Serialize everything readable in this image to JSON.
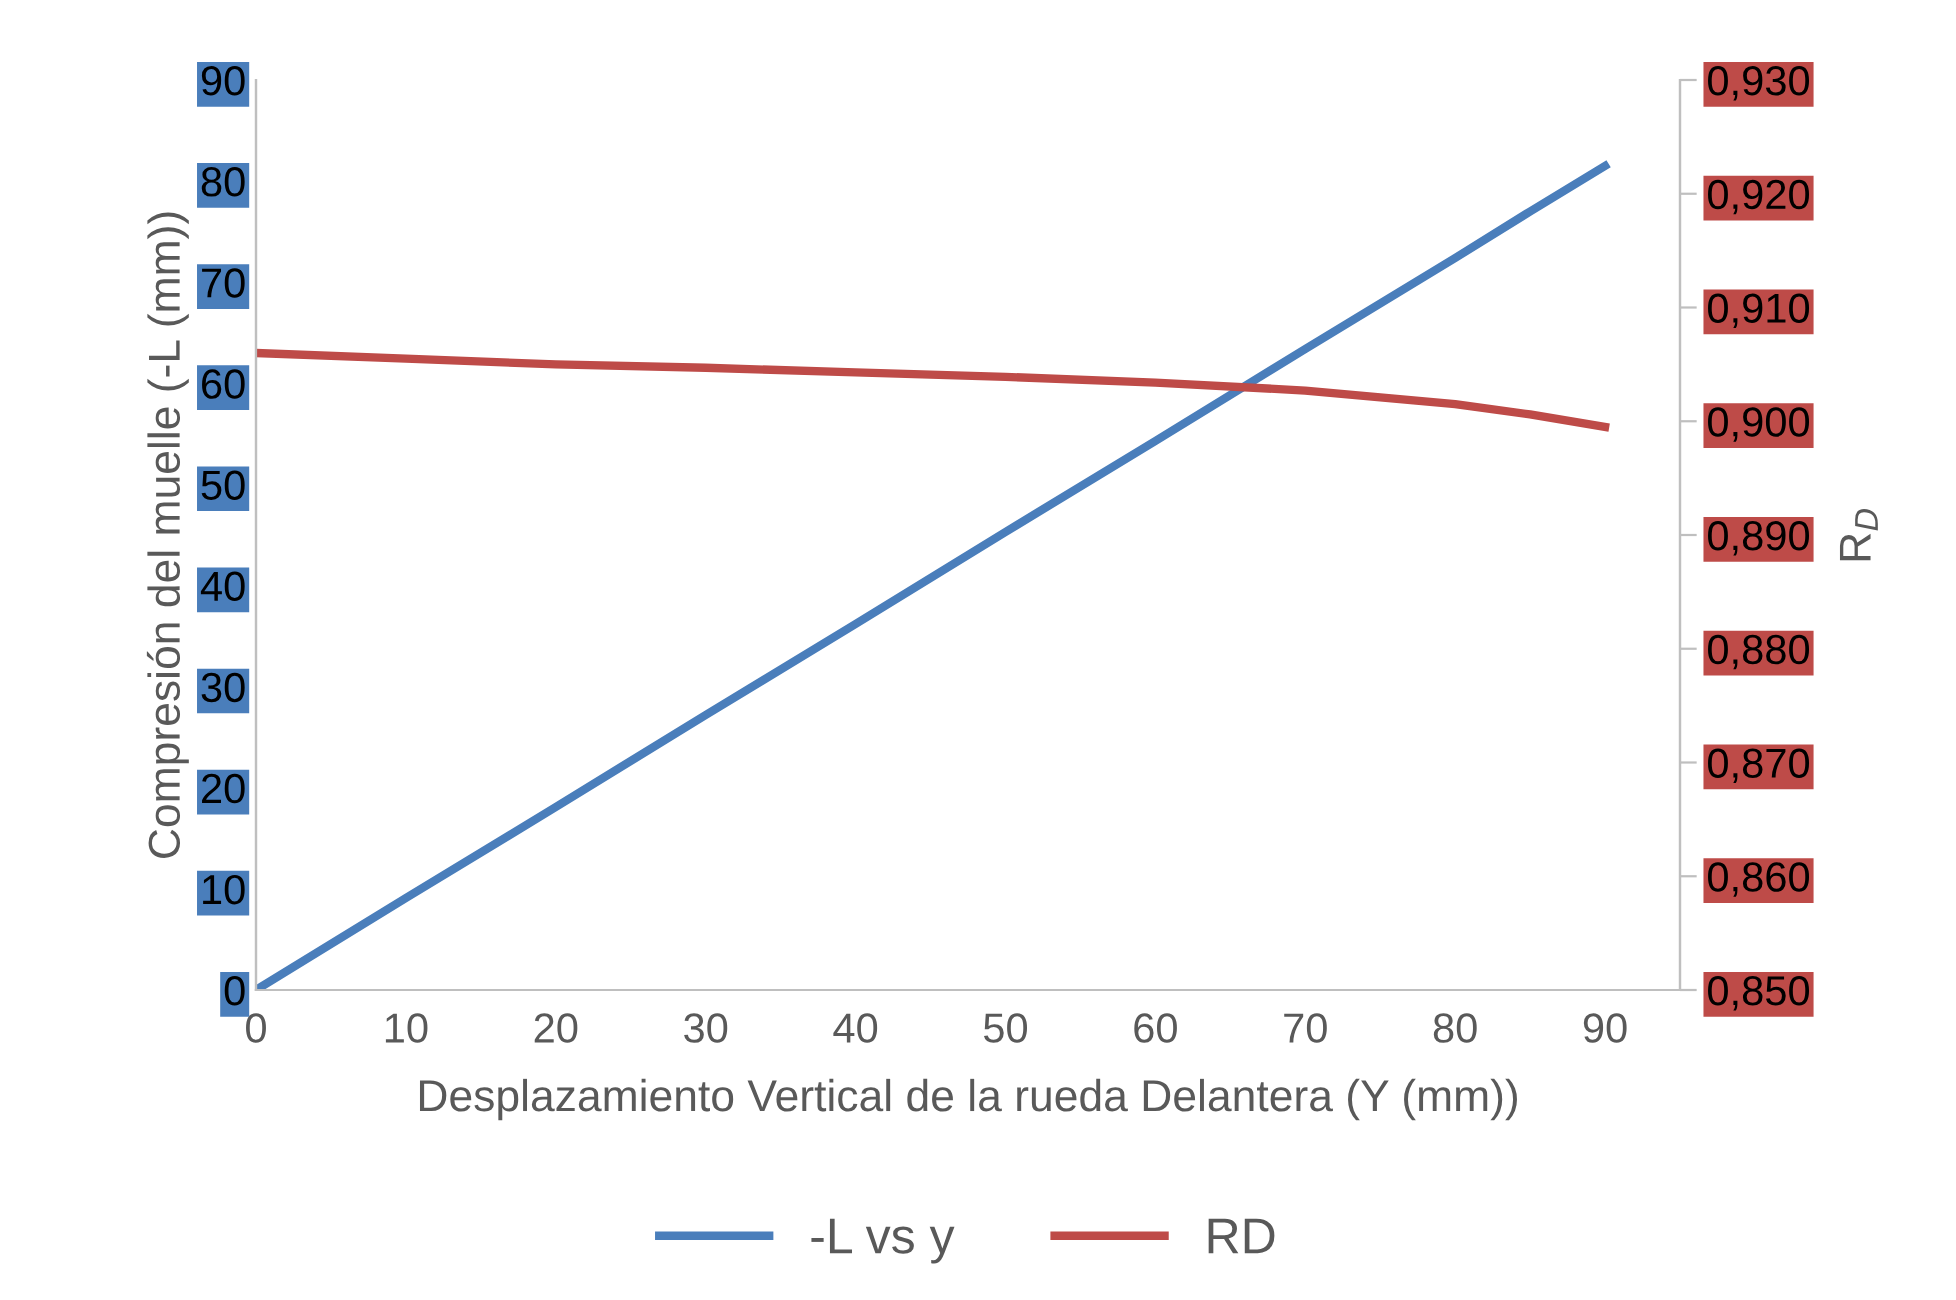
{
  "chart_data": {
    "type": "line",
    "xlabel": "Desplazamiento Vertical de la rueda Delantera (Y (mm))",
    "ylabel": "Compresión del muelle (-L (mm))",
    "y2label": "R$_{D}$",
    "x": [
      0,
      10,
      20,
      30,
      40,
      50,
      60,
      70,
      80,
      85,
      90
    ],
    "series": [
      {
        "name": "-L vs y",
        "color": "#4a7ebb",
        "values": [
          0,
          9.1,
          18.1,
          27.2,
          36.2,
          45.3,
          54.3,
          63.4,
          72.4,
          77.0,
          81.5
        ]
      },
      {
        "name": "RD",
        "color": "#be4b48",
        "axis": "y2",
        "values": [
          0.906,
          0.9055,
          0.905,
          0.9047,
          0.9043,
          0.9039,
          0.9034,
          0.9027,
          0.9015,
          0.9006,
          0.8995
        ]
      }
    ],
    "xlim": [
      0,
      95
    ],
    "xticks": [
      0,
      10,
      20,
      30,
      40,
      50,
      60,
      70,
      80,
      90
    ],
    "ylim": [
      0,
      90
    ],
    "yticks": [
      0,
      10,
      20,
      30,
      40,
      50,
      60,
      70,
      80,
      90
    ],
    "y2lim": [
      0.85,
      0.93
    ],
    "y2ticks": [
      {
        "value": 0.85,
        "label": "0,850"
      },
      {
        "value": 0.86,
        "label": "0,860"
      },
      {
        "value": 0.87,
        "label": "0,870"
      },
      {
        "value": 0.88,
        "label": "0,880"
      },
      {
        "value": 0.89,
        "label": "0,890"
      },
      {
        "value": 0.9,
        "label": "0,900"
      },
      {
        "value": 0.91,
        "label": "0,910"
      },
      {
        "value": 0.92,
        "label": "0,920"
      },
      {
        "value": 0.93,
        "label": "0,930"
      }
    ],
    "grid": false,
    "legend": "bottom",
    "marker": "none",
    "line_style": "solid"
  }
}
